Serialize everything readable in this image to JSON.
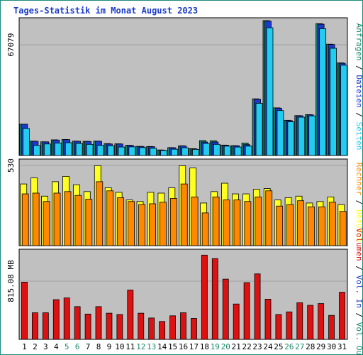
{
  "chart_data": {
    "title": "Tages-Statistik im Monat August 2023",
    "colors": {
      "border": "#1a8a7a",
      "panel_bg": "#c0c0c0",
      "title": "#1a3acc",
      "anfragen": "#1a8a6a",
      "dateien": "#1a3acc",
      "seiten": "#22ccee",
      "besuche": "#ffff22",
      "rechner": "#ff8800",
      "volumen": "#dd1111",
      "vol_in": "#1a3acc",
      "vol_out": "#1a8a6a",
      "weekend_tick": "#1a8a6a"
    },
    "x_categories": [
      "1",
      "2",
      "3",
      "4",
      "5",
      "6",
      "7",
      "8",
      "9",
      "10",
      "11",
      "12",
      "13",
      "14",
      "15",
      "16",
      "17",
      "18",
      "19",
      "20",
      "21",
      "22",
      "23",
      "24",
      "25",
      "26",
      "27",
      "28",
      "29",
      "30",
      "31"
    ],
    "weekend_days": [
      "5",
      "6",
      "12",
      "13",
      "19",
      "20",
      "26",
      "27"
    ],
    "panels": [
      {
        "id": "requests",
        "type": "bar",
        "y_tick_label": "67079",
        "ymax": 75000,
        "right_legend": [
          {
            "text": "Anfragen",
            "color": "#1a8a6a"
          },
          {
            "text": " / ",
            "color": "#000000"
          },
          {
            "text": "Dateien",
            "color": "#1a3acc"
          },
          {
            "text": " / ",
            "color": "#000000"
          },
          {
            "text": "Seiten",
            "color": "#22ccee"
          }
        ],
        "series": [
          {
            "name": "Anfragen",
            "color": "#1a8a6a",
            "values": [
              17400,
              8000,
              7600,
              8700,
              8900,
              8000,
              7900,
              8000,
              6600,
              6500,
              5700,
              5100,
              5000,
              3100,
              4400,
              5400,
              3800,
              8300,
              8200,
              5800,
              5500,
              6900,
              31500,
              75000,
              26500,
              19600,
              22200,
              22700,
              73300,
              61900,
              51500
            ]
          },
          {
            "name": "Dateien",
            "color": "#1a3acc",
            "values": [
              17400,
              7900,
              7600,
              8600,
              8800,
              7900,
              7800,
              7900,
              6400,
              6400,
              5600,
              5000,
              4900,
              3000,
              4300,
              5300,
              3700,
              7500,
              7500,
              5700,
              5400,
              6000,
              31300,
              74700,
              26300,
              19400,
              22100,
              22600,
              73000,
              61700,
              51300
            ]
          },
          {
            "name": "Seiten",
            "color": "#22ccee",
            "values": [
              15000,
              5600,
              6400,
              6900,
              7100,
              6700,
              6200,
              5600,
              5400,
              4700,
              4800,
              4400,
              4000,
              2800,
              3500,
              4300,
              3400,
              6700,
              6200,
              5200,
              4700,
              5200,
              29000,
              71000,
              25000,
              18700,
              21300,
              22000,
              70500,
              59600,
              50200
            ]
          }
        ]
      },
      {
        "id": "visits",
        "type": "bar",
        "y_tick_label": "530",
        "ymax": 550,
        "right_legend": [
          {
            "text": "Rechner",
            "color": "#ff8800"
          },
          {
            "text": " / ",
            "color": "#000000"
          },
          {
            "text": "Besuche",
            "color": "#ffff22"
          }
        ],
        "series": [
          {
            "name": "Besuche",
            "color": "#ffff22",
            "values": [
              405,
              445,
              325,
              420,
              455,
              400,
              355,
              525,
              380,
              350,
              300,
              290,
              350,
              345,
              380,
              525,
              510,
              280,
              355,
              410,
              340,
              340,
              370,
              375,
              300,
              315,
              325,
              280,
              290,
              320,
              270
            ]
          },
          {
            "name": "Rechner",
            "color": "#ff8800",
            "values": [
              340,
              345,
              290,
              345,
              355,
              330,
              305,
              420,
              360,
              315,
              290,
              270,
              275,
              285,
              310,
              405,
              320,
              215,
              320,
              300,
              300,
              290,
              320,
              360,
              260,
              270,
              295,
              255,
              255,
              285,
              225
            ]
          }
        ]
      },
      {
        "id": "volume",
        "type": "bar",
        "y_tick_label": "815.08 MB",
        "ymax": 1000,
        "right_legend": [
          {
            "text": "Volumen",
            "color": "#dd1111"
          },
          {
            "text": " / ",
            "color": "#000000"
          },
          {
            "text": "Vol. In",
            "color": "#1a3acc"
          },
          {
            "text": " / ",
            "color": "#000000"
          },
          {
            "text": "Vol. Out",
            "color": "#1a8a6a"
          }
        ],
        "series": [
          {
            "name": "Volumen",
            "color": "#dd1111",
            "values": [
              655,
              305,
              305,
              455,
              475,
              375,
              290,
              375,
              300,
              285,
              565,
              300,
              245,
              205,
              270,
              305,
              240,
              965,
              925,
              690,
              405,
              650,
              750,
              460,
              285,
              315,
              420,
              390,
              410,
              275,
              540
            ]
          }
        ]
      }
    ]
  }
}
